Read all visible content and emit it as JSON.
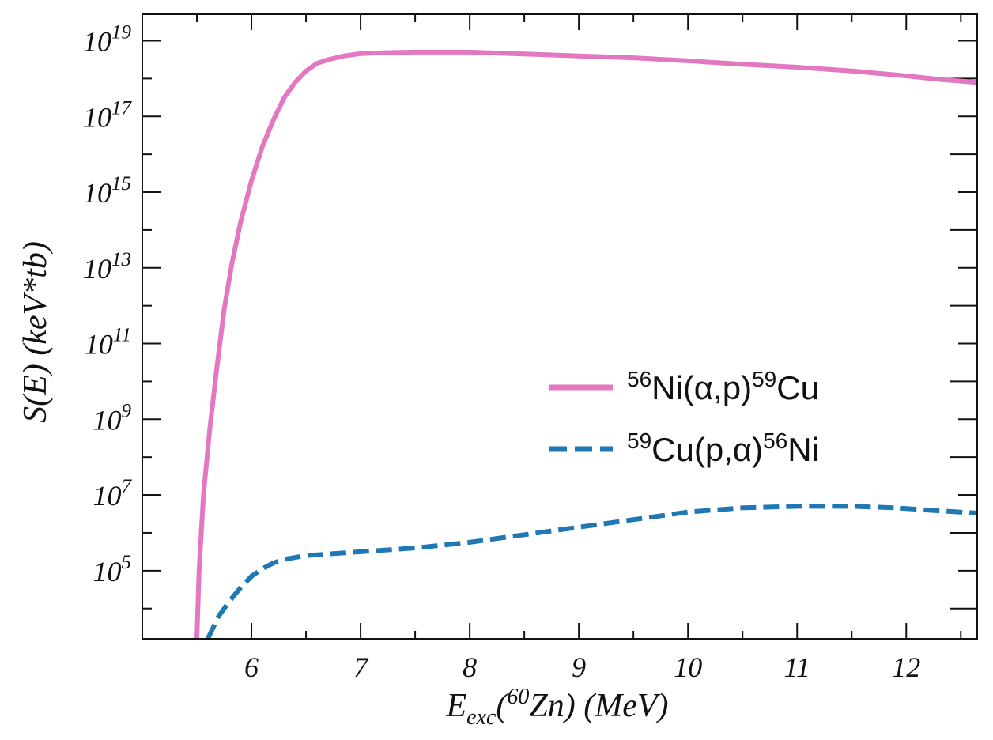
{
  "chart_data": {
    "type": "line",
    "x_scale": "linear",
    "y_scale": "log",
    "xlim": [
      5.0,
      12.65
    ],
    "ylim_log10": [
      3.2,
      19.7
    ],
    "x_ticks": [
      6,
      7,
      8,
      9,
      10,
      11,
      12
    ],
    "x_tick_labels": [
      "6",
      "7",
      "8",
      "9",
      "10",
      "11",
      "12"
    ],
    "y_major_exponents": [
      5,
      7,
      9,
      11,
      13,
      15,
      17,
      19
    ],
    "y_tick_base": "10",
    "y_tick_exponents": [
      "5",
      "7",
      "9",
      "11",
      "13",
      "15",
      "17",
      "19"
    ],
    "xlabel": {
      "main": "E",
      "sub": "exc",
      "open": "(",
      "iso_mass": "60",
      "element": "Zn",
      "close": ") (MeV)"
    },
    "ylabel": "S(E) (keV*tb)",
    "legend_position": "center-right",
    "series": [
      {
        "name": "56Ni(α,p)59Cu",
        "label_parts": {
          "mass1": "56",
          "body1": "Ni(α,p)",
          "mass2": "59",
          "body2": "Cu"
        },
        "color": "#e377c2",
        "style": "solid",
        "points": [
          [
            5.5,
            3.2
          ],
          [
            5.52,
            5.0
          ],
          [
            5.56,
            7.0
          ],
          [
            5.62,
            8.8
          ],
          [
            5.68,
            10.3
          ],
          [
            5.75,
            11.9
          ],
          [
            5.82,
            13.1
          ],
          [
            5.9,
            14.2
          ],
          [
            6.0,
            15.3
          ],
          [
            6.1,
            16.2
          ],
          [
            6.2,
            16.9
          ],
          [
            6.3,
            17.5
          ],
          [
            6.4,
            17.9
          ],
          [
            6.5,
            18.2
          ],
          [
            6.6,
            18.4
          ],
          [
            6.7,
            18.5
          ],
          [
            6.85,
            18.6
          ],
          [
            7.0,
            18.66
          ],
          [
            7.2,
            18.68
          ],
          [
            7.5,
            18.7
          ],
          [
            8.0,
            18.7
          ],
          [
            8.5,
            18.65
          ],
          [
            9.0,
            18.6
          ],
          [
            9.5,
            18.55
          ],
          [
            10.0,
            18.47
          ],
          [
            10.5,
            18.38
          ],
          [
            11.0,
            18.3
          ],
          [
            11.5,
            18.2
          ],
          [
            12.0,
            18.07
          ],
          [
            12.3,
            17.98
          ],
          [
            12.65,
            17.9
          ]
        ]
      },
      {
        "name": "59Cu(p,α)56Ni",
        "label_parts": {
          "mass1": "59",
          "body1": "Cu(p,α)",
          "mass2": "56",
          "body2": "Ni"
        },
        "color": "#1f77b4",
        "style": "dashed",
        "points": [
          [
            5.6,
            3.2
          ],
          [
            5.7,
            3.8
          ],
          [
            5.8,
            4.2
          ],
          [
            5.9,
            4.55
          ],
          [
            6.0,
            4.85
          ],
          [
            6.1,
            5.05
          ],
          [
            6.2,
            5.2
          ],
          [
            6.3,
            5.3
          ],
          [
            6.5,
            5.4
          ],
          [
            6.75,
            5.45
          ],
          [
            7.0,
            5.5
          ],
          [
            7.5,
            5.6
          ],
          [
            8.0,
            5.75
          ],
          [
            8.5,
            5.95
          ],
          [
            9.0,
            6.15
          ],
          [
            9.5,
            6.35
          ],
          [
            10.0,
            6.55
          ],
          [
            10.5,
            6.66
          ],
          [
            11.0,
            6.7
          ],
          [
            11.5,
            6.7
          ],
          [
            11.9,
            6.66
          ],
          [
            12.2,
            6.6
          ],
          [
            12.65,
            6.52
          ]
        ]
      }
    ]
  }
}
